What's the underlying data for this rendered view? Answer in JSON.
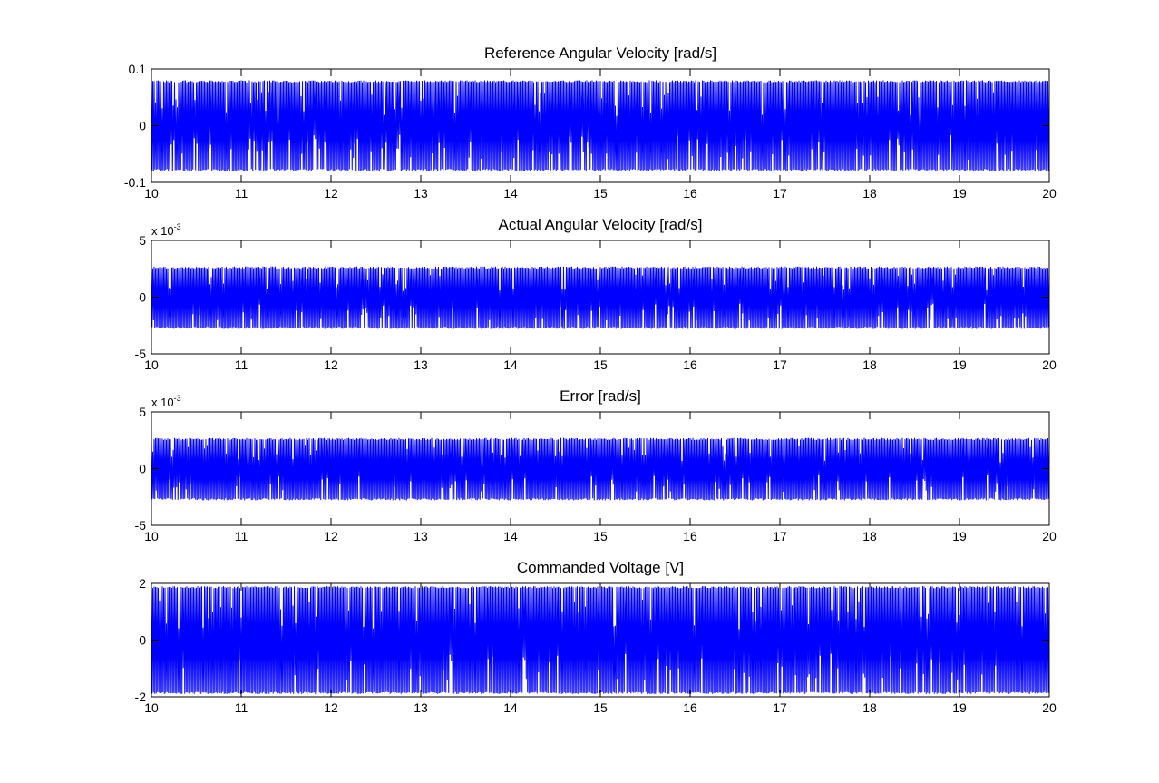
{
  "chart_data": [
    {
      "type": "line",
      "title": "Reference Angular Velocity [rad/s]",
      "xlabel": "",
      "ylabel": "",
      "xlim": [
        10,
        20
      ],
      "ylim": [
        -0.1,
        0.1
      ],
      "xticks": [
        "10",
        "11",
        "12",
        "13",
        "14",
        "15",
        "16",
        "17",
        "18",
        "19",
        "20"
      ],
      "yticks": [
        "0.1",
        "0",
        "-0.1"
      ],
      "y_exponent": null,
      "series": [
        {
          "color": "#0000ff",
          "signal": "dense oscillation",
          "x_start": 10,
          "x_end": 20,
          "peak": 0.08,
          "trough": -0.08
        }
      ],
      "grid": false
    },
    {
      "type": "line",
      "title": "Actual Angular Velocity [rad/s]",
      "xlabel": "",
      "ylabel": "",
      "xlim": [
        10,
        20
      ],
      "ylim": [
        -5,
        5
      ],
      "xticks": [
        "10",
        "11",
        "12",
        "13",
        "14",
        "15",
        "16",
        "17",
        "18",
        "19",
        "20"
      ],
      "yticks": [
        "5",
        "0",
        "-5"
      ],
      "y_exponent": {
        "base": "x 10",
        "power": "-3"
      },
      "series": [
        {
          "color": "#0000ff",
          "signal": "dense oscillation",
          "x_start": 10,
          "x_end": 20,
          "peak": 2.7,
          "trough": -2.8
        }
      ],
      "grid": false
    },
    {
      "type": "line",
      "title": "Error [rad/s]",
      "xlabel": "",
      "ylabel": "",
      "xlim": [
        10,
        20
      ],
      "ylim": [
        -5,
        5
      ],
      "xticks": [
        "10",
        "11",
        "12",
        "13",
        "14",
        "15",
        "16",
        "17",
        "18",
        "19",
        "20"
      ],
      "yticks": [
        "5",
        "0",
        "-5"
      ],
      "y_exponent": {
        "base": "x 10",
        "power": "-3"
      },
      "series": [
        {
          "color": "#0000ff",
          "signal": "dense oscillation",
          "x_start": 10,
          "x_end": 20,
          "peak": 2.7,
          "trough": -2.8
        }
      ],
      "grid": false
    },
    {
      "type": "line",
      "title": "Commanded Voltage [V]",
      "xlabel": "",
      "ylabel": "",
      "xlim": [
        10,
        20
      ],
      "ylim": [
        -2,
        2
      ],
      "xticks": [
        "10",
        "11",
        "12",
        "13",
        "14",
        "15",
        "16",
        "17",
        "18",
        "19",
        "20"
      ],
      "yticks": [
        "2",
        "0",
        "-2"
      ],
      "y_exponent": null,
      "series": [
        {
          "color": "#0000ff",
          "signal": "dense oscillation",
          "x_start": 10,
          "x_end": 20,
          "peak": 1.9,
          "trough": -1.9
        }
      ],
      "grid": false
    }
  ]
}
